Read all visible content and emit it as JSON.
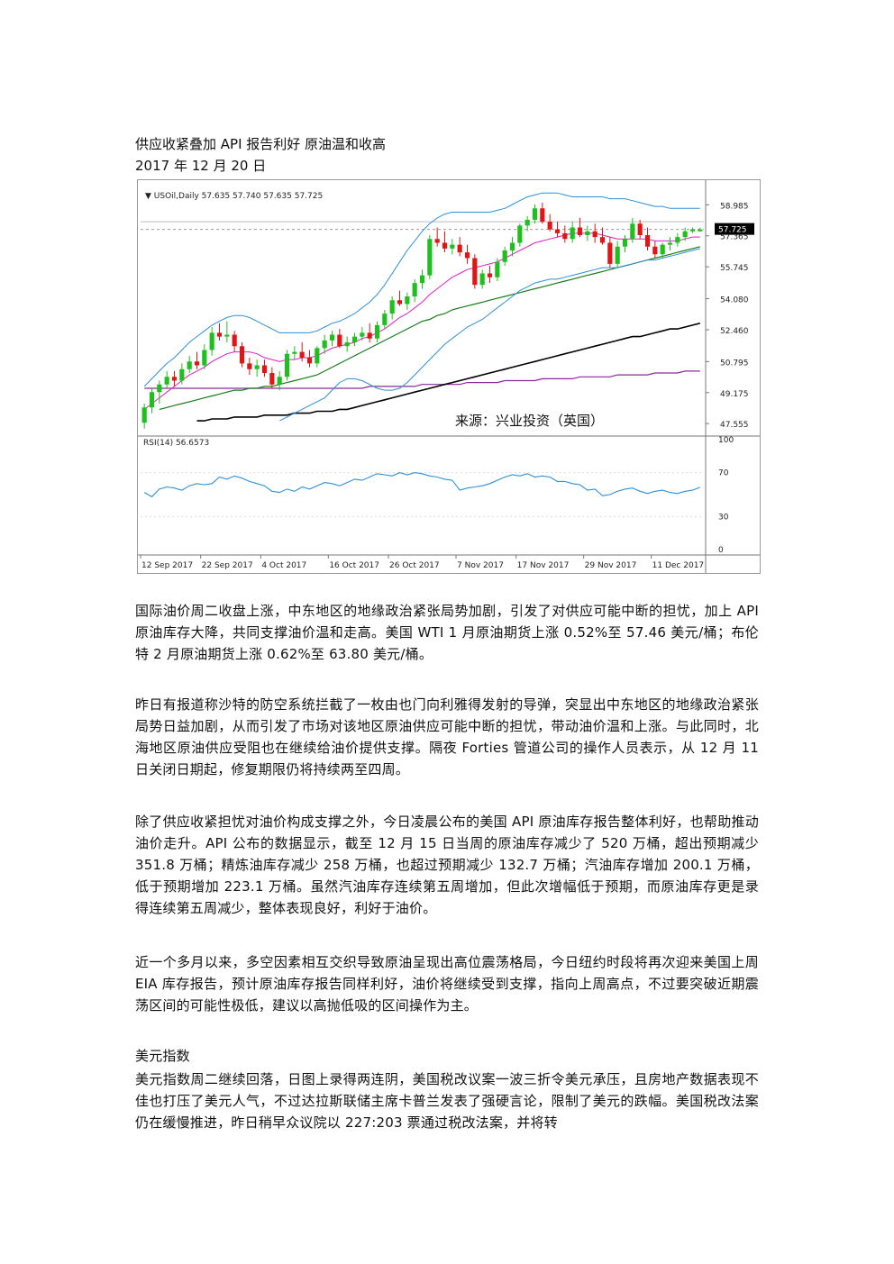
{
  "doc": {
    "title": "供应收紧叠加 API 报告利好  原油温和收高",
    "date": "2017 年 12 月 20 日",
    "paragraphs": [
      "国际油价周二收盘上涨，中东地区的地缘政治紧张局势加剧，引发了对供应可能中断的担忧，加上 API 原油库存大降，共同支撑油价温和走高。美国 WTI 1 月原油期货上涨 0.52%至 57.46 美元/桶；布伦特 2 月原油期货上涨 0.62%至 63.80 美元/桶。",
      "昨日有报道称沙特的防空系统拦截了一枚由也门向利雅得发射的导弹，突显出中东地区的地缘政治紧张局势日益加剧，从而引发了市场对该地区原油供应可能中断的担忧，带动油价温和上涨。与此同时，北海地区原油供应受阻也在继续给油价提供支撑。隔夜 Forties 管道公司的操作人员表示，从 12 月 11 日关闭日期起，修复期限仍将持续两至四周。",
      "除了供应收紧担忧对油价构成支撑之外，今日凌晨公布的美国 API 原油库存报告整体利好，也帮助推动油价走升。API 公布的数据显示，截至 12 月 15 日当周的原油库存减少了 520 万桶，超出预期减少 351.8 万桶；精炼油库存减少 258 万桶，也超过预期减少 132.7 万桶；汽油库存增加 200.1 万桶，低于预期增加 223.1 万桶。虽然汽油库存连续第五周增加，但此次增幅低于预期，而原油库存更是录得连续第五周减少，整体表现良好，利好于油价。",
      "近一个多月以来，多空因素相互交织导致原油呈现出高位震荡格局，今日纽约时段将再次迎来美国上周 EIA 库存报告，预计原油库存报告同样利好，油价将继续受到支撑，指向上周高点，不过要突破近期震荡区间的可能性极低，建议以高抛低吸的区间操作为主。"
    ],
    "section2_heading": "美元指数",
    "section2_paragraph": "美元指数周二继续回落，日图上录得两连阴，美国税改议案一波三折令美元承压，且房地产数据表现不佳也打压了美元人气，不过达拉斯联储主席卡普兰发表了强硬言论，限制了美元的跌幅。美国税改法案仍在缓慢推进，昨日稍早众议院以 227:203 票通过税改法案，并将转"
  },
  "chart_data": {
    "type": "candlestick",
    "symbol_label": "USOil,Daily  57.635 57.740 57.635 57.725",
    "last_price_label": "57.725",
    "watermark": "来源：兴业投资（英国）",
    "price_axis_ticks": [
      "58.985",
      "57.365",
      "55.745",
      "54.080",
      "52.460",
      "50.795",
      "49.175",
      "47.555"
    ],
    "price_axis_values": [
      58.985,
      57.365,
      55.745,
      54.08,
      52.46,
      50.795,
      49.175,
      47.555
    ],
    "price_ylim": [
      47.0,
      59.8
    ],
    "x_tick_labels": [
      "12 Sep 2017",
      "22 Sep 2017",
      "4 Oct 2017",
      "16 Oct 2017",
      "26 Oct 2017",
      "7 Nov 2017",
      "17 Nov 2017",
      "29 Nov 2017",
      "11 Dec 2017"
    ],
    "x_tick_index": [
      0,
      8,
      16,
      25,
      33,
      42,
      50,
      59,
      68
    ],
    "rsi": {
      "label": "RSI(14) 56.6573",
      "ticks": [
        "100",
        "70",
        "30",
        "0"
      ],
      "tick_values": [
        100,
        70,
        30,
        0
      ],
      "values": [
        52,
        48,
        55,
        57,
        56,
        54,
        58,
        60,
        59,
        60,
        66,
        64,
        67,
        65,
        62,
        60,
        58,
        53,
        52,
        55,
        53,
        57,
        55,
        58,
        61,
        60,
        58,
        61,
        64,
        63,
        66,
        69,
        68,
        67,
        70,
        68,
        70,
        69,
        67,
        66,
        64,
        63,
        54,
        56,
        57,
        58,
        60,
        63,
        66,
        68,
        67,
        69,
        66,
        67,
        66,
        62,
        62,
        60,
        59,
        54,
        55,
        49,
        50,
        53,
        55,
        56,
        53,
        51,
        53,
        54,
        52,
        51,
        53,
        54,
        56.66
      ]
    },
    "ohlc": [
      [
        47.6,
        48.6,
        47.3,
        48.4
      ],
      [
        48.4,
        49.4,
        48.1,
        49.2
      ],
      [
        49.2,
        49.8,
        48.6,
        49.6
      ],
      [
        49.6,
        50.3,
        49.4,
        50.0
      ],
      [
        50.0,
        50.3,
        49.5,
        49.8
      ],
      [
        49.8,
        50.7,
        49.6,
        50.4
      ],
      [
        50.4,
        51.1,
        50.2,
        50.8
      ],
      [
        50.8,
        51.3,
        50.4,
        50.6
      ],
      [
        50.6,
        51.7,
        50.4,
        51.4
      ],
      [
        51.4,
        52.6,
        51.1,
        52.3
      ],
      [
        52.3,
        52.8,
        51.9,
        52.1
      ],
      [
        52.1,
        52.9,
        51.8,
        52.2
      ],
      [
        52.2,
        52.4,
        51.3,
        51.6
      ],
      [
        51.6,
        51.8,
        50.5,
        50.7
      ],
      [
        50.7,
        51.0,
        50.1,
        50.4
      ],
      [
        50.4,
        50.9,
        50.0,
        50.6
      ],
      [
        50.6,
        50.9,
        50.0,
        50.2
      ],
      [
        50.2,
        50.5,
        49.4,
        49.6
      ],
      [
        49.6,
        50.3,
        49.3,
        50.0
      ],
      [
        50.0,
        51.4,
        49.8,
        51.2
      ],
      [
        51.2,
        51.6,
        50.9,
        51.3
      ],
      [
        51.3,
        51.8,
        50.8,
        51.0
      ],
      [
        51.0,
        51.4,
        50.5,
        50.7
      ],
      [
        50.7,
        51.6,
        50.5,
        51.5
      ],
      [
        51.5,
        52.2,
        51.2,
        51.9
      ],
      [
        51.9,
        52.4,
        51.6,
        52.2
      ],
      [
        52.2,
        52.5,
        51.5,
        51.6
      ],
      [
        51.6,
        52.1,
        51.3,
        51.8
      ],
      [
        51.8,
        52.3,
        51.6,
        52.1
      ],
      [
        52.1,
        52.6,
        51.9,
        52.3
      ],
      [
        52.3,
        52.8,
        51.8,
        52.0
      ],
      [
        52.0,
        52.9,
        51.8,
        52.7
      ],
      [
        52.7,
        53.5,
        52.5,
        53.3
      ],
      [
        53.3,
        54.2,
        53.0,
        54.0
      ],
      [
        54.0,
        54.5,
        53.7,
        53.8
      ],
      [
        53.8,
        54.4,
        53.5,
        54.2
      ],
      [
        54.2,
        55.1,
        53.9,
        54.9
      ],
      [
        54.9,
        55.6,
        54.6,
        55.3
      ],
      [
        55.3,
        57.4,
        55.1,
        57.2
      ],
      [
        57.2,
        57.8,
        56.8,
        57.0
      ],
      [
        57.0,
        57.6,
        56.5,
        56.7
      ],
      [
        56.7,
        57.2,
        56.4,
        56.9
      ],
      [
        56.9,
        57.3,
        56.3,
        56.5
      ],
      [
        56.5,
        56.9,
        55.9,
        56.2
      ],
      [
        56.2,
        56.4,
        54.6,
        54.8
      ],
      [
        54.8,
        55.6,
        54.6,
        55.4
      ],
      [
        55.4,
        55.8,
        54.9,
        55.2
      ],
      [
        55.2,
        56.2,
        55.0,
        56.0
      ],
      [
        56.0,
        56.8,
        55.8,
        56.6
      ],
      [
        56.6,
        57.3,
        56.3,
        57.0
      ],
      [
        57.0,
        58.0,
        56.8,
        57.9
      ],
      [
        57.9,
        58.4,
        57.6,
        58.2
      ],
      [
        58.2,
        59.0,
        58.0,
        58.8
      ],
      [
        58.8,
        59.1,
        58.0,
        58.1
      ],
      [
        58.1,
        58.5,
        57.6,
        57.7
      ],
      [
        57.7,
        58.1,
        57.3,
        57.5
      ],
      [
        57.5,
        57.9,
        57.0,
        57.2
      ],
      [
        57.2,
        58.1,
        57.0,
        57.8
      ],
      [
        57.8,
        58.3,
        57.3,
        57.4
      ],
      [
        57.4,
        57.9,
        57.1,
        57.6
      ],
      [
        57.6,
        58.0,
        57.0,
        57.3
      ],
      [
        57.3,
        57.8,
        56.9,
        57.0
      ],
      [
        57.0,
        57.3,
        55.7,
        55.9
      ],
      [
        55.9,
        57.1,
        55.7,
        56.8
      ],
      [
        56.8,
        57.4,
        56.5,
        57.2
      ],
      [
        57.2,
        58.3,
        57.0,
        58.0
      ],
      [
        58.0,
        58.2,
        57.2,
        57.4
      ],
      [
        57.4,
        57.8,
        56.6,
        56.8
      ],
      [
        56.8,
        57.1,
        56.2,
        56.4
      ],
      [
        56.4,
        57.0,
        56.2,
        56.9
      ],
      [
        56.9,
        57.3,
        56.6,
        57.0
      ],
      [
        57.0,
        57.5,
        56.8,
        57.3
      ],
      [
        57.3,
        57.8,
        57.1,
        57.6
      ],
      [
        57.6,
        57.8,
        57.5,
        57.7
      ],
      [
        57.6,
        57.8,
        57.6,
        57.7
      ]
    ],
    "bollinger": {
      "mid": [
        48.3,
        48.6,
        48.9,
        49.2,
        49.5,
        49.8,
        50.1,
        50.3,
        50.5,
        50.8,
        51.0,
        51.2,
        51.3,
        51.3,
        51.3,
        51.2,
        51.0,
        50.9,
        50.8,
        50.9,
        50.9,
        51.0,
        51.0,
        51.1,
        51.3,
        51.5,
        51.6,
        51.7,
        51.8,
        52.0,
        52.1,
        52.3,
        52.5,
        52.8,
        53.1,
        53.3,
        53.6,
        53.9,
        54.3,
        54.6,
        54.9,
        55.2,
        55.4,
        55.6,
        55.7,
        55.8,
        55.9,
        56.0,
        56.2,
        56.4,
        56.6,
        56.8,
        57.0,
        57.1,
        57.2,
        57.3,
        57.4,
        57.5,
        57.5,
        57.5,
        57.5,
        57.4,
        57.3,
        57.2,
        57.2,
        57.2,
        57.2,
        57.2,
        57.1,
        57.1,
        57.1,
        57.1,
        57.2,
        57.3,
        57.3
      ],
      "upper": [
        49.5,
        49.9,
        50.3,
        50.7,
        51.0,
        51.4,
        51.8,
        52.1,
        52.4,
        52.7,
        52.9,
        53.1,
        53.2,
        53.2,
        53.1,
        52.9,
        52.7,
        52.5,
        52.3,
        52.3,
        52.3,
        52.3,
        52.3,
        52.4,
        52.6,
        52.8,
        52.9,
        53.1,
        53.3,
        53.6,
        53.9,
        54.3,
        54.8,
        55.4,
        56.0,
        56.6,
        57.1,
        57.6,
        58.0,
        58.3,
        58.5,
        58.6,
        58.6,
        58.6,
        58.6,
        58.6,
        58.6,
        58.7,
        58.8,
        59.0,
        59.2,
        59.4,
        59.5,
        59.6,
        59.6,
        59.6,
        59.5,
        59.4,
        59.4,
        59.4,
        59.4,
        59.4,
        59.3,
        59.3,
        59.3,
        59.2,
        59.1,
        59.0,
        58.9,
        58.9,
        58.8,
        58.8,
        58.8,
        58.8,
        58.8
      ],
      "lower": [
        null,
        null,
        null,
        null,
        null,
        null,
        null,
        null,
        null,
        null,
        null,
        null,
        null,
        null,
        null,
        null,
        null,
        null,
        47.7,
        47.9,
        48.1,
        48.3,
        48.5,
        48.7,
        48.9,
        49.3,
        49.7,
        49.9,
        49.9,
        49.8,
        49.6,
        49.4,
        49.3,
        49.3,
        49.4,
        49.7,
        50.1,
        50.5,
        50.9,
        51.3,
        51.7,
        52.0,
        52.3,
        52.6,
        52.8,
        53.0,
        53.3,
        53.6,
        53.9,
        54.2,
        54.5,
        54.7,
        54.9,
        55.0,
        55.1,
        55.1,
        55.2,
        55.3,
        55.4,
        55.5,
        55.6,
        55.7,
        55.7,
        55.7,
        55.8,
        55.9,
        56.0,
        56.1,
        56.1,
        56.2,
        56.3,
        56.4,
        56.5,
        56.6,
        56.7
      ]
    },
    "ma_green": [
      null,
      null,
      48.3,
      48.4,
      48.5,
      48.6,
      48.7,
      48.8,
      48.9,
      49.0,
      49.1,
      49.2,
      49.3,
      49.3,
      49.4,
      49.4,
      49.5,
      49.5,
      49.6,
      49.7,
      49.8,
      49.9,
      50.0,
      50.1,
      50.3,
      50.5,
      50.7,
      50.9,
      51.1,
      51.3,
      51.5,
      51.7,
      51.9,
      52.1,
      52.3,
      52.5,
      52.7,
      52.9,
      53.0,
      53.2,
      53.3,
      53.5,
      53.6,
      53.7,
      53.8,
      53.9,
      54.0,
      54.1,
      54.2,
      54.3,
      54.4,
      54.5,
      54.6,
      54.7,
      54.8,
      54.9,
      55.0,
      55.1,
      55.2,
      55.3,
      55.4,
      55.5,
      55.6,
      55.7,
      55.8,
      55.9,
      56.0,
      56.1,
      56.2,
      56.3,
      56.4,
      56.5,
      56.6,
      56.7,
      56.8
    ],
    "ma_purple": [
      49.4,
      49.4,
      49.4,
      49.4,
      49.4,
      49.4,
      49.4,
      49.4,
      49.4,
      49.4,
      49.4,
      49.4,
      49.4,
      49.4,
      49.4,
      49.4,
      49.4,
      49.4,
      49.4,
      49.4,
      49.4,
      49.4,
      49.4,
      49.4,
      49.4,
      49.4,
      49.4,
      49.4,
      49.4,
      49.4,
      49.5,
      49.5,
      49.5,
      49.5,
      49.5,
      49.5,
      49.5,
      49.6,
      49.6,
      49.6,
      49.6,
      49.6,
      49.6,
      49.7,
      49.7,
      49.7,
      49.7,
      49.7,
      49.8,
      49.8,
      49.8,
      49.8,
      49.8,
      49.9,
      49.9,
      49.9,
      49.9,
      49.9,
      50.0,
      50.0,
      50.0,
      50.0,
      50.0,
      50.1,
      50.1,
      50.1,
      50.1,
      50.1,
      50.2,
      50.2,
      50.2,
      50.2,
      50.3,
      50.3,
      50.3
    ],
    "ma_black": [
      null,
      null,
      null,
      null,
      null,
      null,
      null,
      47.7,
      47.7,
      47.8,
      47.8,
      47.8,
      47.9,
      47.9,
      47.9,
      47.9,
      48.0,
      48.0,
      48.0,
      48.0,
      48.1,
      48.1,
      48.1,
      48.2,
      48.2,
      48.2,
      48.3,
      48.3,
      48.4,
      48.5,
      48.6,
      48.7,
      48.8,
      48.9,
      49.0,
      49.1,
      49.2,
      49.3,
      49.4,
      49.5,
      49.6,
      49.7,
      49.8,
      49.9,
      50.0,
      50.1,
      50.2,
      50.3,
      50.4,
      50.5,
      50.6,
      50.7,
      50.8,
      50.9,
      51.0,
      51.1,
      51.2,
      51.3,
      51.4,
      51.5,
      51.6,
      51.7,
      51.8,
      51.9,
      52.0,
      52.1,
      52.1,
      52.2,
      52.3,
      52.4,
      52.5,
      52.5,
      52.6,
      52.7,
      52.8
    ],
    "colors": {
      "bull": "#1fbf1f",
      "bear": "#e01515",
      "bb": "#2f8fd8",
      "mid": "#e020c0",
      "green_ma": "#1a7a1a",
      "purple_ma": "#8a2a9a",
      "black_ma": "#000000",
      "rsi": "#2f8fd8"
    }
  }
}
